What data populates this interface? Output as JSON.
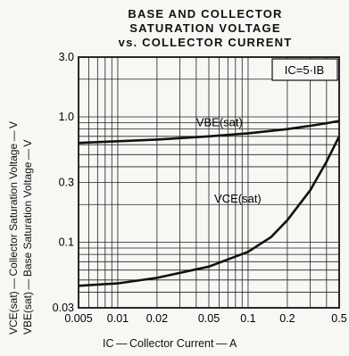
{
  "chart_data": {
    "type": "line",
    "title_lines": [
      "BASE AND COLLECTOR",
      "SATURATION VOLTAGE",
      "vs. COLLECTOR CURRENT"
    ],
    "xlabel": "IC — Collector Current — A",
    "ylabels": [
      "VCE(sat) — Collector Saturation Voltage — V",
      "VBE(sat) — Base Saturation Voltage — V"
    ],
    "x_scale": "log",
    "y_scale": "log",
    "xlim": [
      0.005,
      0.5
    ],
    "ylim": [
      0.03,
      3.0
    ],
    "x_ticks": [
      0.005,
      0.01,
      0.02,
      0.05,
      0.1,
      0.2,
      0.5
    ],
    "x_tick_labels": [
      "0.005",
      "0.01",
      "0.02",
      "0.05",
      "0.1",
      "0.2",
      "0.5"
    ],
    "y_ticks": [
      0.03,
      0.1,
      0.3,
      1.0,
      3.0
    ],
    "y_tick_labels": [
      "0.03",
      "0.1",
      "0.3",
      "1.0",
      "3.0"
    ],
    "grid": true,
    "condition_label": "IC=5·IB",
    "series": [
      {
        "name": "VBE(sat)",
        "x": [
          0.005,
          0.01,
          0.02,
          0.05,
          0.1,
          0.2,
          0.3,
          0.4,
          0.5
        ],
        "y": [
          0.62,
          0.64,
          0.66,
          0.7,
          0.74,
          0.8,
          0.85,
          0.89,
          0.93
        ]
      },
      {
        "name": "VCE(sat)",
        "x": [
          0.005,
          0.01,
          0.02,
          0.05,
          0.1,
          0.15,
          0.2,
          0.3,
          0.4,
          0.5
        ],
        "y": [
          0.045,
          0.047,
          0.052,
          0.064,
          0.084,
          0.11,
          0.15,
          0.26,
          0.44,
          0.7
        ]
      }
    ]
  }
}
